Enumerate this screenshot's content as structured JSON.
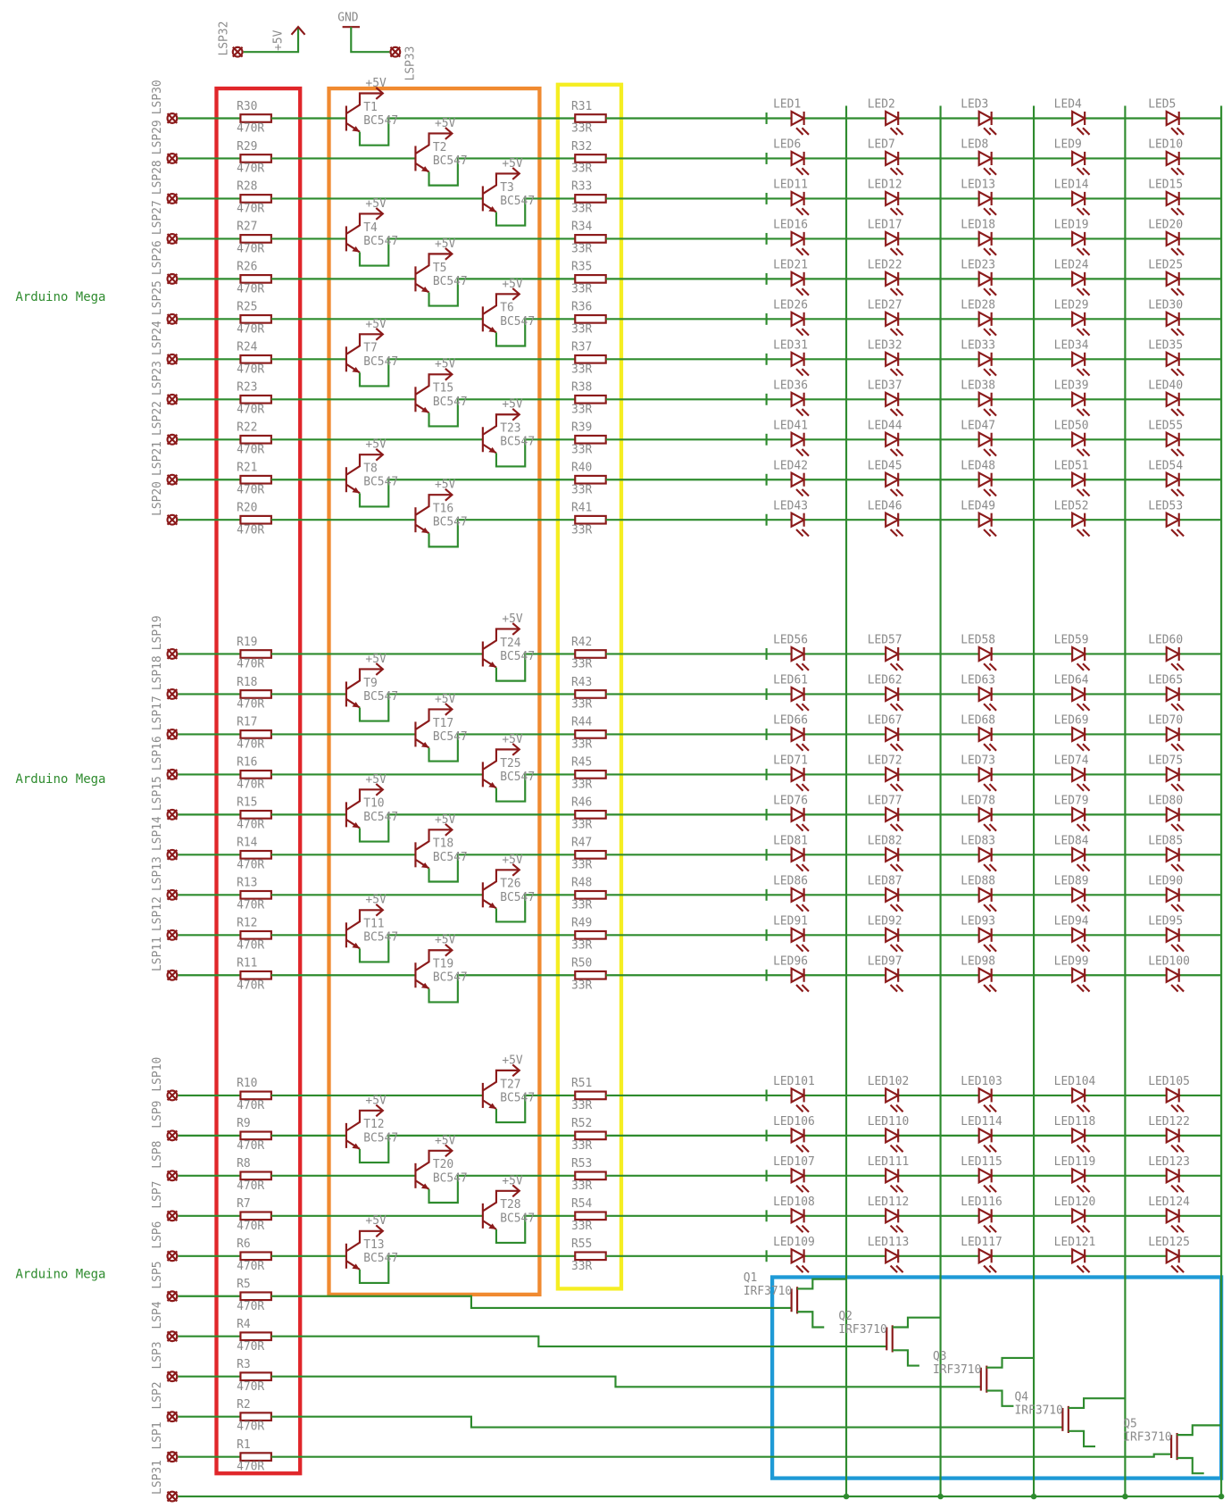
{
  "top": {
    "pin_left": "LSP32",
    "supply": "+5V",
    "ground": "GND",
    "pin_right": "LSP33"
  },
  "transistor_supply": "+5V",
  "groups": [
    {
      "board": "Arduino Mega",
      "rows": [
        {
          "pin": "LSP30",
          "resistor": "R30",
          "value": "470R",
          "transistor": {
            "name": "T1",
            "type": "BC547"
          },
          "led_row": {
            "resistor": "R31",
            "value": "33R",
            "leds": [
              "LED1",
              "LED2",
              "LED3",
              "LED4",
              "LED5"
            ]
          }
        },
        {
          "pin": "LSP29",
          "resistor": "R29",
          "value": "470R",
          "transistor": {
            "name": "T2",
            "type": "BC547"
          },
          "led_row": {
            "resistor": "R32",
            "value": "33R",
            "leds": [
              "LED6",
              "LED7",
              "LED8",
              "LED9",
              "LED10"
            ]
          }
        },
        {
          "pin": "LSP28",
          "resistor": "R28",
          "value": "470R",
          "transistor": {
            "name": "T3",
            "type": "BC547"
          },
          "led_row": {
            "resistor": "R33",
            "value": "33R",
            "leds": [
              "LED11",
              "LED12",
              "LED13",
              "LED14",
              "LED15"
            ]
          }
        },
        {
          "pin": "LSP27",
          "resistor": "R27",
          "value": "470R",
          "transistor": {
            "name": "T4",
            "type": "BC547"
          },
          "led_row": {
            "resistor": "R34",
            "value": "33R",
            "leds": [
              "LED16",
              "LED17",
              "LED18",
              "LED19",
              "LED20"
            ]
          }
        },
        {
          "pin": "LSP26",
          "resistor": "R26",
          "value": "470R",
          "transistor": {
            "name": "T5",
            "type": "BC547"
          },
          "led_row": {
            "resistor": "R35",
            "value": "33R",
            "leds": [
              "LED21",
              "LED22",
              "LED23",
              "LED24",
              "LED25"
            ]
          }
        },
        {
          "pin": "LSP25",
          "resistor": "R25",
          "value": "470R",
          "transistor": {
            "name": "T6",
            "type": "BC547"
          },
          "led_row": {
            "resistor": "R36",
            "value": "33R",
            "leds": [
              "LED26",
              "LED27",
              "LED28",
              "LED29",
              "LED30"
            ]
          }
        },
        {
          "pin": "LSP24",
          "resistor": "R24",
          "value": "470R",
          "transistor": {
            "name": "T7",
            "type": "BC547"
          },
          "led_row": {
            "resistor": "R37",
            "value": "33R",
            "leds": [
              "LED31",
              "LED32",
              "LED33",
              "LED34",
              "LED35"
            ]
          }
        },
        {
          "pin": "LSP23",
          "resistor": "R23",
          "value": "470R",
          "transistor": {
            "name": "T15",
            "type": "BC547"
          },
          "led_row": {
            "resistor": "R38",
            "value": "33R",
            "leds": [
              "LED36",
              "LED37",
              "LED38",
              "LED39",
              "LED40"
            ]
          }
        },
        {
          "pin": "LSP22",
          "resistor": "R22",
          "value": "470R",
          "transistor": {
            "name": "T23",
            "type": "BC547"
          },
          "led_row": {
            "resistor": "R39",
            "value": "33R",
            "leds": [
              "LED41",
              "LED44",
              "LED47",
              "LED50",
              "LED55"
            ]
          }
        },
        {
          "pin": "LSP21",
          "resistor": "R21",
          "value": "470R",
          "transistor": {
            "name": "T8",
            "type": "BC547"
          },
          "led_row": {
            "resistor": "R40",
            "value": "33R",
            "leds": [
              "LED42",
              "LED45",
              "LED48",
              "LED51",
              "LED54"
            ]
          }
        },
        {
          "pin": "LSP20",
          "resistor": "R20",
          "value": "470R",
          "transistor": {
            "name": "T16",
            "type": "BC547"
          },
          "led_row": {
            "resistor": "R41",
            "value": "33R",
            "leds": [
              "LED43",
              "LED46",
              "LED49",
              "LED52",
              "LED53"
            ]
          }
        }
      ]
    },
    {
      "board": "Arduino Mega",
      "rows": [
        {
          "pin": "LSP19",
          "resistor": "R19",
          "value": "470R",
          "transistor": {
            "name": "T24",
            "type": "BC547"
          },
          "led_row": {
            "resistor": "R42",
            "value": "33R",
            "leds": [
              "LED56",
              "LED57",
              "LED58",
              "LED59",
              "LED60"
            ]
          }
        },
        {
          "pin": "LSP18",
          "resistor": "R18",
          "value": "470R",
          "transistor": {
            "name": "T9",
            "type": "BC547"
          },
          "led_row": {
            "resistor": "R43",
            "value": "33R",
            "leds": [
              "LED61",
              "LED62",
              "LED63",
              "LED64",
              "LED65"
            ]
          }
        },
        {
          "pin": "LSP17",
          "resistor": "R17",
          "value": "470R",
          "transistor": {
            "name": "T17",
            "type": "BC547"
          },
          "led_row": {
            "resistor": "R44",
            "value": "33R",
            "leds": [
              "LED66",
              "LED67",
              "LED68",
              "LED69",
              "LED70"
            ]
          }
        },
        {
          "pin": "LSP16",
          "resistor": "R16",
          "value": "470R",
          "transistor": {
            "name": "T25",
            "type": "BC547"
          },
          "led_row": {
            "resistor": "R45",
            "value": "33R",
            "leds": [
              "LED71",
              "LED72",
              "LED73",
              "LED74",
              "LED75"
            ]
          }
        },
        {
          "pin": "LSP15",
          "resistor": "R15",
          "value": "470R",
          "transistor": {
            "name": "T10",
            "type": "BC547"
          },
          "led_row": {
            "resistor": "R46",
            "value": "33R",
            "leds": [
              "LED76",
              "LED77",
              "LED78",
              "LED79",
              "LED80"
            ]
          }
        },
        {
          "pin": "LSP14",
          "resistor": "R14",
          "value": "470R",
          "transistor": {
            "name": "T18",
            "type": "BC547"
          },
          "led_row": {
            "resistor": "R47",
            "value": "33R",
            "leds": [
              "LED81",
              "LED82",
              "LED83",
              "LED84",
              "LED85"
            ]
          }
        },
        {
          "pin": "LSP13",
          "resistor": "R13",
          "value": "470R",
          "transistor": {
            "name": "T26",
            "type": "BC547"
          },
          "led_row": {
            "resistor": "R48",
            "value": "33R",
            "leds": [
              "LED86",
              "LED87",
              "LED88",
              "LED89",
              "LED90"
            ]
          }
        },
        {
          "pin": "LSP12",
          "resistor": "R12",
          "value": "470R",
          "transistor": {
            "name": "T11",
            "type": "BC547"
          },
          "led_row": {
            "resistor": "R49",
            "value": "33R",
            "leds": [
              "LED91",
              "LED92",
              "LED93",
              "LED94",
              "LED95"
            ]
          }
        },
        {
          "pin": "LSP11",
          "resistor": "R11",
          "value": "470R",
          "transistor": {
            "name": "T19",
            "type": "BC547"
          },
          "led_row": {
            "resistor": "R50",
            "value": "33R",
            "leds": [
              "LED96",
              "LED97",
              "LED98",
              "LED99",
              "LED100"
            ]
          }
        }
      ]
    },
    {
      "board": "Arduino Mega",
      "rows": [
        {
          "pin": "LSP10",
          "resistor": "R10",
          "value": "470R",
          "transistor": {
            "name": "T27",
            "type": "BC547"
          },
          "led_row": {
            "resistor": "R51",
            "value": "33R",
            "leds": [
              "LED101",
              "LED102",
              "LED103",
              "LED104",
              "LED105"
            ]
          }
        },
        {
          "pin": "LSP9",
          "resistor": "R9",
          "value": "470R",
          "transistor": {
            "name": "T12",
            "type": "BC547"
          },
          "led_row": {
            "resistor": "R52",
            "value": "33R",
            "leds": [
              "LED106",
              "LED110",
              "LED114",
              "LED118",
              "LED122"
            ]
          }
        },
        {
          "pin": "LSP8",
          "resistor": "R8",
          "value": "470R",
          "transistor": {
            "name": "T20",
            "type": "BC547"
          },
          "led_row": {
            "resistor": "R53",
            "value": "33R",
            "leds": [
              "LED107",
              "LED111",
              "LED115",
              "LED119",
              "LED123"
            ]
          }
        },
        {
          "pin": "LSP7",
          "resistor": "R7",
          "value": "470R",
          "transistor": {
            "name": "T28",
            "type": "BC547"
          },
          "led_row": {
            "resistor": "R54",
            "value": "33R",
            "leds": [
              "LED108",
              "LED112",
              "LED116",
              "LED120",
              "LED124"
            ]
          }
        },
        {
          "pin": "LSP6",
          "resistor": "R6",
          "value": "470R",
          "transistor": {
            "name": "T13",
            "type": "BC547"
          },
          "led_row": {
            "resistor": "R55",
            "value": "33R",
            "leds": [
              "LED109",
              "LED113",
              "LED117",
              "LED121",
              "LED125"
            ]
          }
        },
        {
          "pin": "LSP5",
          "resistor": "R5",
          "value": "470R"
        },
        {
          "pin": "LSP4",
          "resistor": "R4",
          "value": "470R"
        },
        {
          "pin": "LSP3",
          "resistor": "R3",
          "value": "470R"
        },
        {
          "pin": "LSP2",
          "resistor": "R2",
          "value": "470R"
        },
        {
          "pin": "LSP1",
          "resistor": "R1",
          "value": "470R"
        }
      ]
    }
  ],
  "mosfets": [
    {
      "name": "Q1",
      "type": "IRF3710"
    },
    {
      "name": "Q2",
      "type": "IRF3710"
    },
    {
      "name": "Q3",
      "type": "IRF3710"
    },
    {
      "name": "Q4",
      "type": "IRF3710"
    },
    {
      "name": "Q5",
      "type": "IRF3710"
    }
  ],
  "ground_pin": "LSP31"
}
